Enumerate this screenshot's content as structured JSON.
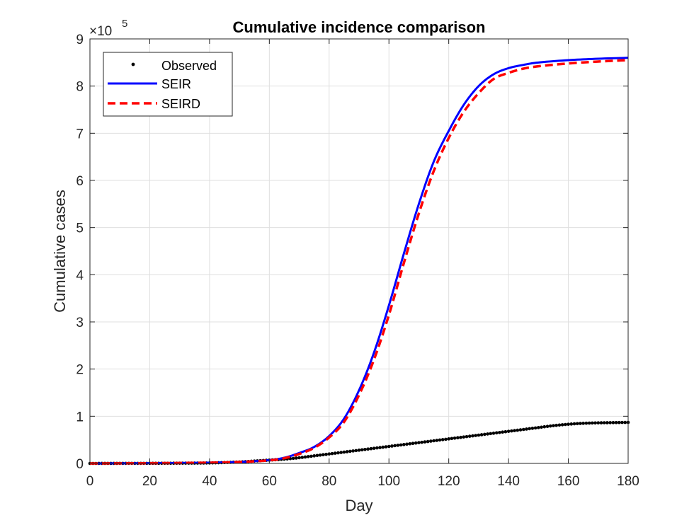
{
  "chart_data": {
    "type": "line",
    "title": "Cumulative incidence comparison",
    "xlabel": "Day",
    "ylabel": "Cumulative cases",
    "y_multiplier": {
      "base": "×10",
      "exponent": "5"
    },
    "xlim": [
      0,
      180
    ],
    "ylim": [
      0,
      9
    ],
    "xticks": [
      "0",
      "20",
      "40",
      "60",
      "80",
      "100",
      "120",
      "140",
      "160",
      "180"
    ],
    "yticks": [
      "0",
      "1",
      "2",
      "3",
      "4",
      "5",
      "6",
      "7",
      "8",
      "9"
    ],
    "grid": true,
    "legend_position": "top-left",
    "series": [
      {
        "name": "Observed",
        "style": "dots",
        "color": "#000000",
        "x": [
          0,
          10,
          20,
          30,
          40,
          50,
          55,
          60,
          65,
          70,
          75,
          80,
          85,
          90,
          95,
          100,
          105,
          110,
          115,
          120,
          125,
          130,
          135,
          140,
          145,
          150,
          155,
          160,
          165,
          170,
          175,
          180
        ],
        "y": [
          0,
          0.001,
          0.002,
          0.005,
          0.01,
          0.03,
          0.05,
          0.07,
          0.09,
          0.12,
          0.16,
          0.2,
          0.24,
          0.28,
          0.32,
          0.36,
          0.4,
          0.44,
          0.48,
          0.52,
          0.56,
          0.6,
          0.64,
          0.68,
          0.72,
          0.76,
          0.8,
          0.83,
          0.85,
          0.86,
          0.865,
          0.87
        ]
      },
      {
        "name": "SEIR",
        "style": "solid",
        "color": "#0000ff",
        "x": [
          0,
          20,
          40,
          50,
          60,
          65,
          70,
          75,
          80,
          85,
          90,
          95,
          100,
          105,
          110,
          115,
          120,
          125,
          130,
          135,
          140,
          145,
          150,
          160,
          170,
          180
        ],
        "y": [
          0,
          0.005,
          0.015,
          0.03,
          0.07,
          0.12,
          0.22,
          0.35,
          0.58,
          0.95,
          1.55,
          2.35,
          3.35,
          4.45,
          5.5,
          6.4,
          7.05,
          7.6,
          8.0,
          8.25,
          8.38,
          8.45,
          8.5,
          8.55,
          8.58,
          8.6
        ]
      },
      {
        "name": "SEIRD",
        "style": "dashed",
        "color": "#ff0000",
        "x": [
          0,
          20,
          40,
          50,
          60,
          65,
          70,
          75,
          80,
          85,
          90,
          95,
          100,
          105,
          110,
          115,
          120,
          125,
          130,
          135,
          140,
          145,
          150,
          160,
          170,
          180
        ],
        "y": [
          0,
          0.005,
          0.015,
          0.03,
          0.065,
          0.11,
          0.2,
          0.33,
          0.55,
          0.88,
          1.45,
          2.2,
          3.15,
          4.25,
          5.3,
          6.2,
          6.9,
          7.45,
          7.85,
          8.15,
          8.28,
          8.37,
          8.42,
          8.48,
          8.52,
          8.55
        ]
      }
    ]
  }
}
